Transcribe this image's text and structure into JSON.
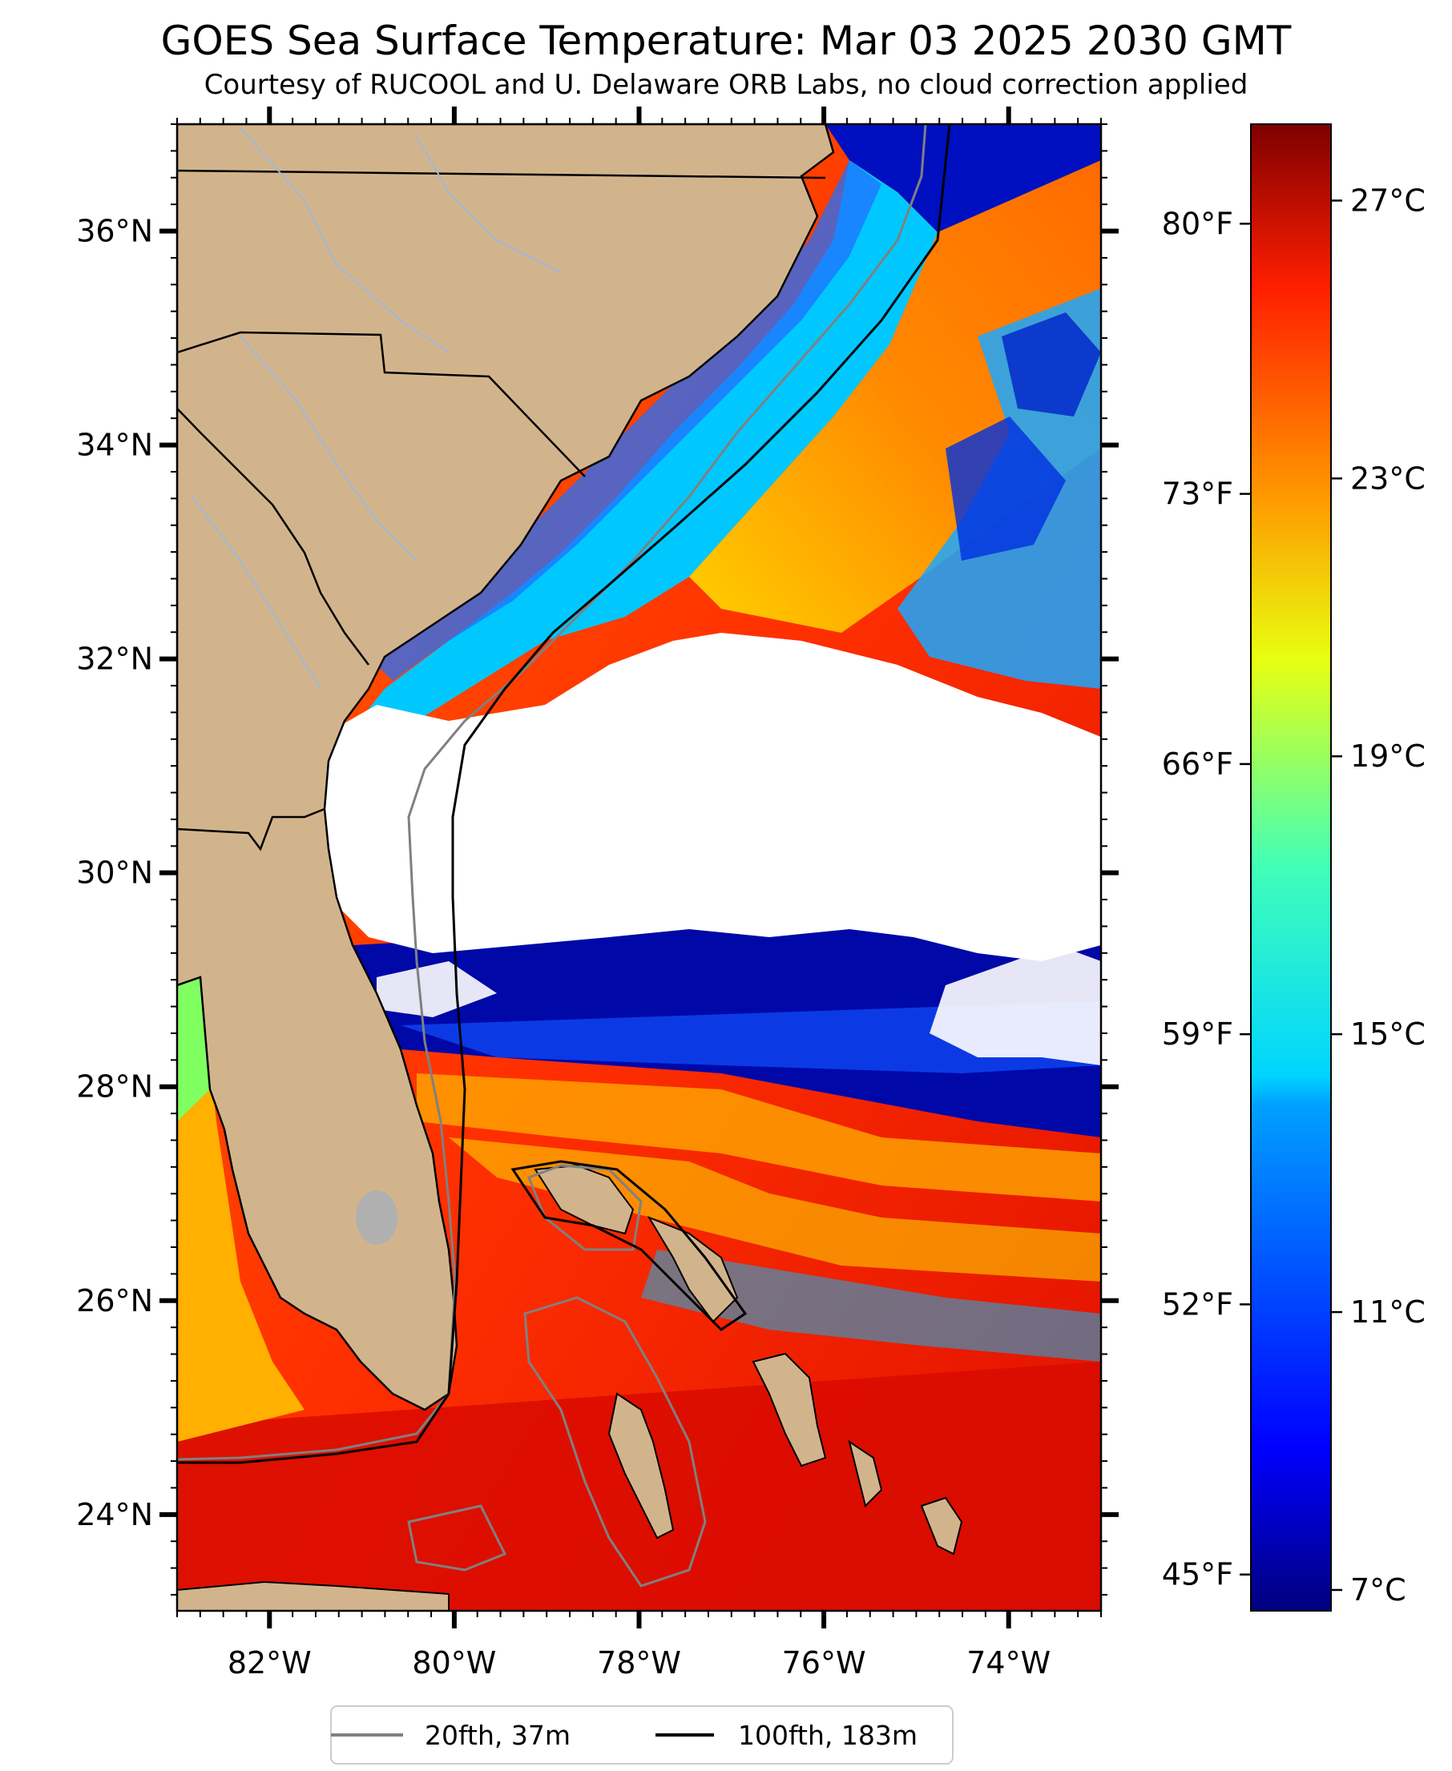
{
  "title": "GOES Sea Surface Temperature: Mar 03 2025 2030 GMT",
  "subtitle": "Courtesy of RUCOOL and U. Delaware ORB Labs, no cloud correction applied",
  "map": {
    "lon_range": [
      -83,
      -73
    ],
    "lat_range": [
      23.1,
      37
    ],
    "lat_ticks": [
      {
        "value": 24,
        "label": "24°N"
      },
      {
        "value": 26,
        "label": "26°N"
      },
      {
        "value": 28,
        "label": "28°N"
      },
      {
        "value": 30,
        "label": "30°N"
      },
      {
        "value": 32,
        "label": "32°N"
      },
      {
        "value": 34,
        "label": "34°N"
      },
      {
        "value": 36,
        "label": "36°N"
      }
    ],
    "lon_ticks": [
      {
        "value": -82,
        "label": "82°W"
      },
      {
        "value": -80,
        "label": "80°W"
      },
      {
        "value": -78,
        "label": "78°W"
      },
      {
        "value": -76,
        "label": "76°W"
      },
      {
        "value": -74,
        "label": "74°W"
      }
    ],
    "colors": {
      "land": "#d2b48c",
      "cloud": "#ffffff",
      "lake": "#b0b0b0",
      "river": "#9eb8d8",
      "border": "#000000",
      "contour_20fth": "#808080",
      "contour_100fth": "#000000"
    }
  },
  "colorbar": {
    "colormap": "jet",
    "range_c": [
      6.7,
      28.1
    ],
    "celsius_ticks": [
      {
        "value": 7,
        "label": "7°C"
      },
      {
        "value": 11,
        "label": "11°C"
      },
      {
        "value": 15,
        "label": "15°C"
      },
      {
        "value": 19,
        "label": "19°C"
      },
      {
        "value": 23,
        "label": "23°C"
      },
      {
        "value": 27,
        "label": "27°C"
      }
    ],
    "fahrenheit_ticks": [
      {
        "value": 45,
        "label": "45°F"
      },
      {
        "value": 52,
        "label": "52°F"
      },
      {
        "value": 59,
        "label": "59°F"
      },
      {
        "value": 66,
        "label": "66°F"
      },
      {
        "value": 73,
        "label": "73°F"
      },
      {
        "value": 80,
        "label": "80°F"
      }
    ]
  },
  "legend": {
    "items": [
      {
        "label": "20fth, 37m",
        "color": "#808080"
      },
      {
        "label": "100fth, 183m",
        "color": "#000000"
      }
    ]
  }
}
